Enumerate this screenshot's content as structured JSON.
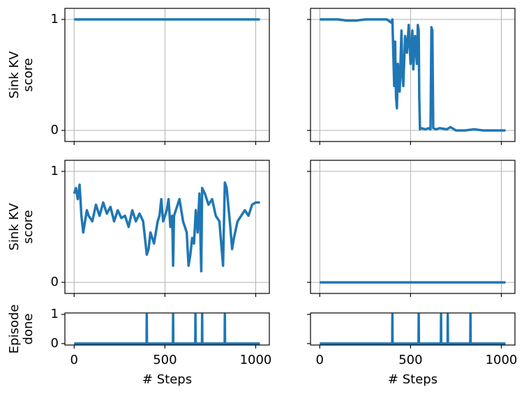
{
  "chart_data": [
    {
      "type": "line",
      "ylabel": [
        "Sink KV",
        "score"
      ],
      "xlim": [
        -51,
        1075
      ],
      "ylim": [
        -0.1,
        1.1
      ],
      "xticks": [
        0,
        500,
        1000
      ],
      "yticks": [
        0,
        1
      ],
      "xticklabels": false,
      "yticklabels": true,
      "grid": true,
      "series": [
        {
          "color": "#1f77b4",
          "x": [
            0,
            1023
          ],
          "values": [
            1,
            1
          ]
        }
      ]
    },
    {
      "type": "line",
      "xlim": [
        -51,
        1075
      ],
      "ylim": [
        -0.1,
        1.1
      ],
      "xticks": [
        0,
        500,
        1000
      ],
      "yticks": [
        0,
        1
      ],
      "xticklabels": false,
      "yticklabels": false,
      "grid": true,
      "series": [
        {
          "color": "#1f77b4",
          "x": [
            0,
            100,
            150,
            200,
            250,
            300,
            370,
            395,
            400,
            410,
            415,
            420,
            425,
            430,
            440,
            450,
            455,
            460,
            470,
            480,
            490,
            500,
            510,
            515,
            525,
            535,
            540,
            545,
            548,
            552,
            560,
            580,
            600,
            610,
            615,
            620,
            625,
            640,
            660,
            700,
            720,
            750,
            800,
            850,
            900,
            1023
          ],
          "values": [
            1,
            1,
            0.99,
            0.99,
            1,
            1,
            1,
            0.97,
            1,
            0.4,
            0.8,
            0.3,
            0.2,
            0.6,
            0.35,
            0.9,
            0.5,
            0.4,
            0.85,
            0.7,
            0.95,
            0.6,
            0.9,
            0.55,
            0.85,
            0.6,
            0.95,
            0.9,
            0.3,
            0.01,
            0.02,
            0.01,
            0.02,
            0.01,
            0.93,
            0.9,
            0.02,
            0.01,
            0.02,
            0.01,
            0.03,
            0,
            0,
            0.01,
            0,
            0
          ]
        }
      ]
    },
    {
      "type": "line",
      "ylabel": [
        "Sink KV",
        "score"
      ],
      "xlim": [
        -51,
        1075
      ],
      "ylim": [
        -0.1,
        1.1
      ],
      "xticks": [
        0,
        500,
        1000
      ],
      "yticks": [
        0,
        1
      ],
      "xticklabels": false,
      "yticklabels": true,
      "grid": true,
      "series": [
        {
          "color": "#1f77b4",
          "x": [
            0,
            10,
            20,
            30,
            40,
            50,
            60,
            70,
            80,
            100,
            120,
            140,
            160,
            180,
            200,
            220,
            240,
            260,
            280,
            300,
            320,
            340,
            360,
            380,
            400,
            410,
            420,
            440,
            460,
            470,
            480,
            490,
            500,
            510,
            520,
            530,
            540,
            545,
            550,
            560,
            580,
            600,
            620,
            630,
            640,
            650,
            660,
            670,
            680,
            690,
            700,
            705,
            720,
            740,
            760,
            780,
            800,
            820,
            830,
            840,
            860,
            870,
            880,
            900,
            920,
            940,
            960,
            980,
            1000,
            1023
          ],
          "values": [
            0.8,
            0.85,
            0.75,
            0.88,
            0.6,
            0.45,
            0.55,
            0.65,
            0.6,
            0.55,
            0.7,
            0.6,
            0.72,
            0.62,
            0.68,
            0.55,
            0.65,
            0.58,
            0.6,
            0.5,
            0.65,
            0.55,
            0.62,
            0.55,
            0.25,
            0.3,
            0.45,
            0.35,
            0.55,
            0.6,
            0.75,
            0.55,
            0.6,
            0.65,
            0.75,
            0.5,
            0.6,
            0.15,
            0.6,
            0.65,
            0.75,
            0.55,
            0.45,
            0.15,
            0.25,
            0.4,
            0.35,
            0.65,
            0.45,
            0.8,
            0.1,
            0.85,
            0.8,
            0.7,
            0.75,
            0.6,
            0.55,
            0.15,
            0.9,
            0.85,
            0.5,
            0.3,
            0.4,
            0.55,
            0.6,
            0.65,
            0.6,
            0.7,
            0.72,
            0.72
          ]
        }
      ]
    },
    {
      "type": "line",
      "xlim": [
        -51,
        1075
      ],
      "ylim": [
        -0.1,
        1.1
      ],
      "xticks": [
        0,
        500,
        1000
      ],
      "yticks": [
        0,
        1
      ],
      "xticklabels": false,
      "yticklabels": false,
      "grid": true,
      "series": [
        {
          "color": "#1f77b4",
          "x": [
            0,
            1023
          ],
          "values": [
            0,
            0
          ]
        }
      ]
    },
    {
      "type": "line",
      "ylabel": [
        "Episode",
        "done"
      ],
      "xlabel": "# Steps",
      "xlim": [
        -51,
        1075
      ],
      "ylim": [
        -0.05,
        1.05
      ],
      "xticks": [
        0,
        500,
        1000
      ],
      "yticks": [
        0,
        1
      ],
      "xticklabels": true,
      "yticklabels": true,
      "grid": false,
      "series": [
        {
          "color": "#1f77b4",
          "x": [
            0,
            399,
            400,
            401,
            544,
            545,
            546,
            667,
            668,
            669,
            704,
            705,
            706,
            829,
            830,
            831,
            1023
          ],
          "values": [
            0,
            0,
            1,
            0,
            0,
            1,
            0,
            0,
            1,
            0,
            0,
            1,
            0,
            0,
            1,
            0,
            0
          ]
        }
      ]
    },
    {
      "type": "line",
      "xlabel": "# Steps",
      "xlim": [
        -51,
        1075
      ],
      "ylim": [
        -0.05,
        1.05
      ],
      "xticks": [
        0,
        500,
        1000
      ],
      "yticks": [
        0,
        1
      ],
      "xticklabels": true,
      "yticklabels": false,
      "grid": false,
      "series": [
        {
          "color": "#1f77b4",
          "x": [
            0,
            399,
            400,
            401,
            544,
            545,
            546,
            667,
            668,
            669,
            704,
            705,
            706,
            829,
            830,
            831,
            1023
          ],
          "values": [
            0,
            0,
            1,
            0,
            0,
            1,
            0,
            0,
            1,
            0,
            0,
            1,
            0,
            0,
            1,
            0,
            0
          ]
        }
      ]
    }
  ]
}
